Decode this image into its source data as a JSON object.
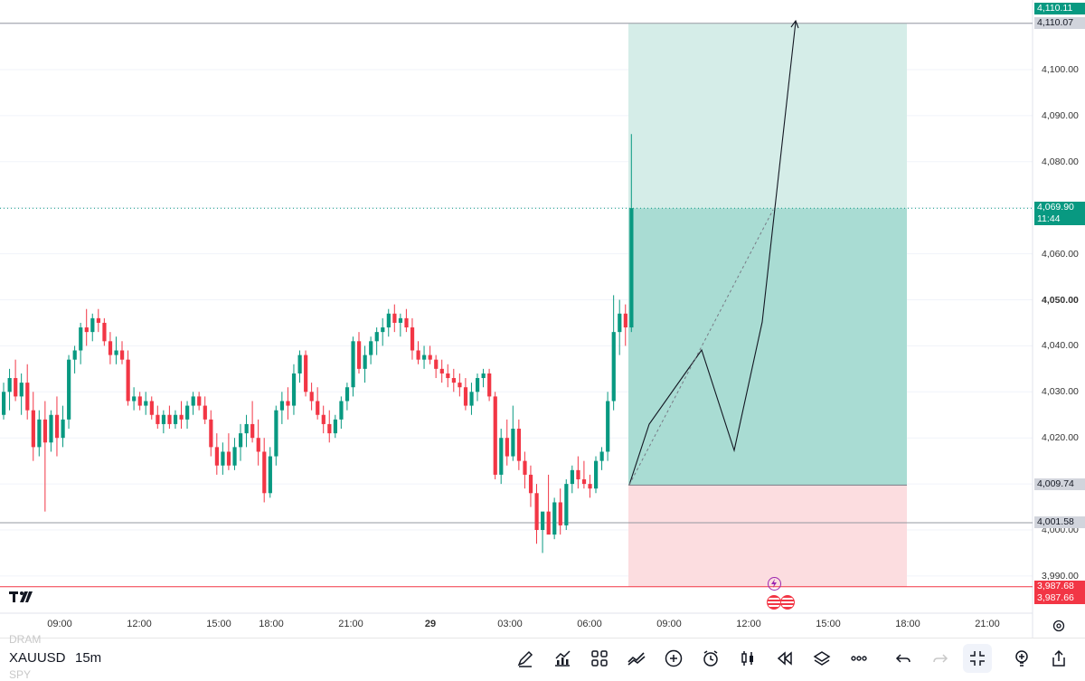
{
  "instrument": {
    "symbol": "XAUUSD",
    "interval": "15m",
    "ghost_above": "DRAM",
    "ghost_below": "SPY"
  },
  "price_scale": {
    "ticks": [
      "4,100.00",
      "4,090.00",
      "4,080.00",
      "4,060.00",
      "4,050.00",
      "4,040.00",
      "4,030.00",
      "4,020.00",
      "4,000.00",
      "3,990.00"
    ],
    "labels": {
      "target_top": "4,110.11",
      "target_line": "4,110.07",
      "current_price": "4,069.90",
      "countdown": "11:44",
      "entry": "4,009.74",
      "horizontal_line": "4,001.58",
      "stop_1": "3,987.68",
      "stop_2": "3,987.66"
    }
  },
  "time_axis": [
    {
      "label": "09:00",
      "bold": false
    },
    {
      "label": "12:00",
      "bold": false
    },
    {
      "label": "15:00",
      "bold": false
    },
    {
      "label": "18:00",
      "bold": false
    },
    {
      "label": "21:00",
      "bold": false
    },
    {
      "label": "29",
      "bold": true
    },
    {
      "label": "03:00",
      "bold": false
    },
    {
      "label": "06:00",
      "bold": false
    },
    {
      "label": "09:00",
      "bold": false
    },
    {
      "label": "12:00",
      "bold": false
    },
    {
      "label": "15:00",
      "bold": false
    },
    {
      "label": "18:00",
      "bold": false
    },
    {
      "label": "21:00",
      "bold": false
    }
  ],
  "colors": {
    "up": "#089981",
    "down": "#f23645",
    "profit_light": "#d5ede8",
    "profit_dark": "#a9dcd3",
    "loss": "#fcdde0",
    "accent": "#131722"
  },
  "position": {
    "type": "long",
    "entry": 4009.74,
    "target": 4110.11,
    "stop": 3987.68
  },
  "toolbar_icons": [
    "brush-icon",
    "indicators-icon",
    "layout-icon",
    "compare-icon",
    "add-icon",
    "alert-icon",
    "chart-type-icon",
    "replay-icon",
    "layers-icon",
    "more-icon",
    "undo-icon",
    "redo-icon",
    "fullscreen-exit-icon",
    "ideas-icon",
    "share-icon"
  ]
}
